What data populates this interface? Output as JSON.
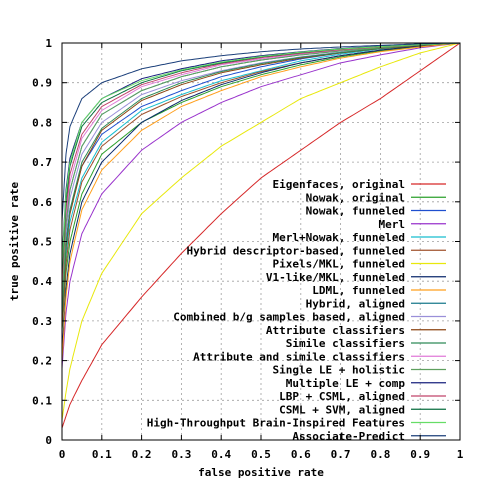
{
  "chart_data": {
    "type": "line",
    "title": "",
    "xlabel": "false positive rate",
    "ylabel": "true positive rate",
    "xlim": [
      0,
      1
    ],
    "ylim": [
      0,
      1
    ],
    "grid": true,
    "legend_position": "bottom-right",
    "x_ticks": [
      "0",
      "0.1",
      "0.2",
      "0.3",
      "0.4",
      "0.5",
      "0.6",
      "0.7",
      "0.8",
      "0.9",
      "1"
    ],
    "y_ticks": [
      "0",
      "0.1",
      "0.2",
      "0.3",
      "0.4",
      "0.5",
      "0.6",
      "0.7",
      "0.8",
      "0.9",
      "1"
    ],
    "series": [
      {
        "name": "Eigenfaces, original",
        "color": "#d62728",
        "tpr_at_fpr_0_05_0_1_0_2_0_3_0_4_0_5_0_6_0_7_0_8_0_9": [],
        "y0": 0.03,
        "points": [
          [
            0,
            0.03
          ],
          [
            0.01,
            0.06
          ],
          [
            0.02,
            0.09
          ],
          [
            0.05,
            0.15
          ],
          [
            0.1,
            0.24
          ],
          [
            0.2,
            0.36
          ],
          [
            0.3,
            0.47
          ],
          [
            0.4,
            0.57
          ],
          [
            0.5,
            0.66
          ],
          [
            0.6,
            0.73
          ],
          [
            0.7,
            0.8
          ],
          [
            0.8,
            0.86
          ],
          [
            0.9,
            0.93
          ],
          [
            1,
            1
          ]
        ]
      },
      {
        "name": "Nowak, original",
        "color": "#2ca02c",
        "points": [
          [
            0,
            0.27
          ],
          [
            0.01,
            0.42
          ],
          [
            0.02,
            0.5
          ],
          [
            0.05,
            0.62
          ],
          [
            0.1,
            0.72
          ],
          [
            0.2,
            0.8
          ],
          [
            0.3,
            0.85
          ],
          [
            0.4,
            0.89
          ],
          [
            0.5,
            0.92
          ],
          [
            0.6,
            0.945
          ],
          [
            0.7,
            0.965
          ],
          [
            0.8,
            0.98
          ],
          [
            0.9,
            0.992
          ],
          [
            1,
            1
          ]
        ]
      },
      {
        "name": "Nowak, funneled",
        "color": "#1f4fcf",
        "points": [
          [
            0,
            0.33
          ],
          [
            0.01,
            0.5
          ],
          [
            0.02,
            0.58
          ],
          [
            0.05,
            0.69
          ],
          [
            0.1,
            0.77
          ],
          [
            0.2,
            0.84
          ],
          [
            0.3,
            0.88
          ],
          [
            0.4,
            0.915
          ],
          [
            0.5,
            0.94
          ],
          [
            0.6,
            0.96
          ],
          [
            0.7,
            0.975
          ],
          [
            0.8,
            0.987
          ],
          [
            0.9,
            0.995
          ],
          [
            1,
            1
          ]
        ]
      },
      {
        "name": "Merl",
        "color": "#9933cc",
        "points": [
          [
            0,
            0.18
          ],
          [
            0.01,
            0.32
          ],
          [
            0.02,
            0.4
          ],
          [
            0.05,
            0.52
          ],
          [
            0.1,
            0.62
          ],
          [
            0.2,
            0.73
          ],
          [
            0.3,
            0.8
          ],
          [
            0.4,
            0.85
          ],
          [
            0.5,
            0.89
          ],
          [
            0.6,
            0.92
          ],
          [
            0.7,
            0.95
          ],
          [
            0.8,
            0.97
          ],
          [
            0.9,
            0.988
          ],
          [
            1,
            1
          ]
        ]
      },
      {
        "name": "Merl+Nowak, funneled",
        "color": "#17becf",
        "points": [
          [
            0,
            0.3
          ],
          [
            0.01,
            0.46
          ],
          [
            0.02,
            0.55
          ],
          [
            0.05,
            0.66
          ],
          [
            0.1,
            0.75
          ],
          [
            0.2,
            0.83
          ],
          [
            0.3,
            0.87
          ],
          [
            0.4,
            0.905
          ],
          [
            0.5,
            0.93
          ],
          [
            0.6,
            0.955
          ],
          [
            0.7,
            0.972
          ],
          [
            0.8,
            0.985
          ],
          [
            0.9,
            0.994
          ],
          [
            1,
            1
          ]
        ]
      },
      {
        "name": "Hybrid descriptor-based, funneled",
        "color": "#a0522d",
        "points": [
          [
            0,
            0.28
          ],
          [
            0.01,
            0.44
          ],
          [
            0.02,
            0.53
          ],
          [
            0.05,
            0.65
          ],
          [
            0.1,
            0.74
          ],
          [
            0.2,
            0.82
          ],
          [
            0.3,
            0.865
          ],
          [
            0.4,
            0.9
          ],
          [
            0.5,
            0.928
          ],
          [
            0.6,
            0.95
          ],
          [
            0.7,
            0.968
          ],
          [
            0.8,
            0.982
          ],
          [
            0.9,
            0.993
          ],
          [
            1,
            1
          ]
        ]
      },
      {
        "name": "Pixels/MKL, funneled",
        "color": "#e8e80c",
        "points": [
          [
            0,
            0.05
          ],
          [
            0.01,
            0.12
          ],
          [
            0.02,
            0.18
          ],
          [
            0.05,
            0.3
          ],
          [
            0.1,
            0.42
          ],
          [
            0.2,
            0.57
          ],
          [
            0.3,
            0.66
          ],
          [
            0.4,
            0.74
          ],
          [
            0.5,
            0.8
          ],
          [
            0.6,
            0.86
          ],
          [
            0.7,
            0.9
          ],
          [
            0.8,
            0.94
          ],
          [
            0.9,
            0.975
          ],
          [
            1,
            1
          ]
        ]
      },
      {
        "name": "V1-like/MKL, funneled",
        "color": "#0b2a6b",
        "points": [
          [
            0,
            0.22
          ],
          [
            0.01,
            0.38
          ],
          [
            0.02,
            0.47
          ],
          [
            0.05,
            0.6
          ],
          [
            0.1,
            0.7
          ],
          [
            0.2,
            0.8
          ],
          [
            0.3,
            0.855
          ],
          [
            0.4,
            0.895
          ],
          [
            0.5,
            0.925
          ],
          [
            0.6,
            0.95
          ],
          [
            0.7,
            0.968
          ],
          [
            0.8,
            0.982
          ],
          [
            0.9,
            0.993
          ],
          [
            1,
            1
          ]
        ]
      },
      {
        "name": "LDML, funneled",
        "color": "#ff9f1c",
        "points": [
          [
            0,
            0.2
          ],
          [
            0.01,
            0.36
          ],
          [
            0.02,
            0.45
          ],
          [
            0.05,
            0.58
          ],
          [
            0.1,
            0.68
          ],
          [
            0.2,
            0.78
          ],
          [
            0.3,
            0.84
          ],
          [
            0.4,
            0.88
          ],
          [
            0.5,
            0.915
          ],
          [
            0.6,
            0.94
          ],
          [
            0.7,
            0.962
          ],
          [
            0.8,
            0.978
          ],
          [
            0.9,
            0.99
          ],
          [
            1,
            1
          ]
        ]
      },
      {
        "name": "Hybrid, aligned",
        "color": "#1a7a8c",
        "points": [
          [
            0,
            0.36
          ],
          [
            0.01,
            0.55
          ],
          [
            0.02,
            0.63
          ],
          [
            0.05,
            0.74
          ],
          [
            0.1,
            0.82
          ],
          [
            0.2,
            0.88
          ],
          [
            0.3,
            0.915
          ],
          [
            0.4,
            0.94
          ],
          [
            0.5,
            0.957
          ],
          [
            0.6,
            0.97
          ],
          [
            0.7,
            0.98
          ],
          [
            0.8,
            0.988
          ],
          [
            0.9,
            0.995
          ],
          [
            1,
            1
          ]
        ]
      },
      {
        "name": "Combined b/g samples based, aligned",
        "color": "#9a8fd9",
        "points": [
          [
            0,
            0.34
          ],
          [
            0.01,
            0.52
          ],
          [
            0.02,
            0.61
          ],
          [
            0.05,
            0.72
          ],
          [
            0.1,
            0.8
          ],
          [
            0.2,
            0.87
          ],
          [
            0.3,
            0.905
          ],
          [
            0.4,
            0.93
          ],
          [
            0.5,
            0.95
          ],
          [
            0.6,
            0.965
          ],
          [
            0.7,
            0.977
          ],
          [
            0.8,
            0.987
          ],
          [
            0.9,
            0.995
          ],
          [
            1,
            1
          ]
        ]
      },
      {
        "name": "Attribute classifiers",
        "color": "#8b4513",
        "points": [
          [
            0,
            0.3
          ],
          [
            0.01,
            0.48
          ],
          [
            0.02,
            0.57
          ],
          [
            0.05,
            0.69
          ],
          [
            0.1,
            0.78
          ],
          [
            0.2,
            0.855
          ],
          [
            0.3,
            0.895
          ],
          [
            0.4,
            0.925
          ],
          [
            0.5,
            0.945
          ],
          [
            0.6,
            0.962
          ],
          [
            0.7,
            0.975
          ],
          [
            0.8,
            0.986
          ],
          [
            0.9,
            0.994
          ],
          [
            1,
            1
          ]
        ]
      },
      {
        "name": "Simile classifiers",
        "color": "#2e8b57",
        "points": [
          [
            0,
            0.31
          ],
          [
            0.01,
            0.49
          ],
          [
            0.02,
            0.58
          ],
          [
            0.05,
            0.7
          ],
          [
            0.1,
            0.785
          ],
          [
            0.2,
            0.86
          ],
          [
            0.3,
            0.9
          ],
          [
            0.4,
            0.928
          ],
          [
            0.5,
            0.948
          ],
          [
            0.6,
            0.964
          ],
          [
            0.7,
            0.976
          ],
          [
            0.8,
            0.987
          ],
          [
            0.9,
            0.995
          ],
          [
            1,
            1
          ]
        ]
      },
      {
        "name": "Attribute and simile classifiers",
        "color": "#e07ad8",
        "points": [
          [
            0,
            0.38
          ],
          [
            0.01,
            0.56
          ],
          [
            0.02,
            0.65
          ],
          [
            0.05,
            0.76
          ],
          [
            0.1,
            0.83
          ],
          [
            0.2,
            0.89
          ],
          [
            0.3,
            0.92
          ],
          [
            0.4,
            0.945
          ],
          [
            0.5,
            0.96
          ],
          [
            0.6,
            0.972
          ],
          [
            0.7,
            0.982
          ],
          [
            0.8,
            0.99
          ],
          [
            0.9,
            0.996
          ],
          [
            1,
            1
          ]
        ]
      },
      {
        "name": "Single LE + holistic",
        "color": "#5fa05f",
        "points": [
          [
            0,
            0.35
          ],
          [
            0.01,
            0.54
          ],
          [
            0.02,
            0.63
          ],
          [
            0.05,
            0.74
          ],
          [
            0.1,
            0.82
          ],
          [
            0.2,
            0.88
          ],
          [
            0.3,
            0.915
          ],
          [
            0.4,
            0.94
          ],
          [
            0.5,
            0.957
          ],
          [
            0.6,
            0.97
          ],
          [
            0.7,
            0.98
          ],
          [
            0.8,
            0.988
          ],
          [
            0.9,
            0.995
          ],
          [
            1,
            1
          ]
        ]
      },
      {
        "name": "Multiple LE + comp",
        "color": "#1a237e",
        "points": [
          [
            0,
            0.45
          ],
          [
            0.01,
            0.63
          ],
          [
            0.02,
            0.71
          ],
          [
            0.05,
            0.8
          ],
          [
            0.1,
            0.86
          ],
          [
            0.2,
            0.91
          ],
          [
            0.3,
            0.935
          ],
          [
            0.4,
            0.955
          ],
          [
            0.5,
            0.968
          ],
          [
            0.6,
            0.978
          ],
          [
            0.7,
            0.986
          ],
          [
            0.8,
            0.992
          ],
          [
            0.9,
            0.997
          ],
          [
            1,
            1
          ]
        ]
      },
      {
        "name": "LBP + CSML, aligned",
        "color": "#c1446b",
        "points": [
          [
            0,
            0.4
          ],
          [
            0.01,
            0.58
          ],
          [
            0.02,
            0.67
          ],
          [
            0.05,
            0.77
          ],
          [
            0.1,
            0.84
          ],
          [
            0.2,
            0.895
          ],
          [
            0.3,
            0.925
          ],
          [
            0.4,
            0.948
          ],
          [
            0.5,
            0.963
          ],
          [
            0.6,
            0.974
          ],
          [
            0.7,
            0.983
          ],
          [
            0.8,
            0.99
          ],
          [
            0.9,
            0.996
          ],
          [
            1,
            1
          ]
        ]
      },
      {
        "name": "CSML + SVM, aligned",
        "color": "#0a6e3f",
        "points": [
          [
            0,
            0.42
          ],
          [
            0.01,
            0.6
          ],
          [
            0.02,
            0.69
          ],
          [
            0.05,
            0.79
          ],
          [
            0.1,
            0.85
          ],
          [
            0.2,
            0.9
          ],
          [
            0.3,
            0.93
          ],
          [
            0.4,
            0.95
          ],
          [
            0.5,
            0.965
          ],
          [
            0.6,
            0.976
          ],
          [
            0.7,
            0.985
          ],
          [
            0.8,
            0.991
          ],
          [
            0.9,
            0.996
          ],
          [
            1,
            1
          ]
        ]
      },
      {
        "name": "High-Throughput Brain-Inspired Features",
        "color": "#66dd66",
        "points": [
          [
            0,
            0.44
          ],
          [
            0.01,
            0.62
          ],
          [
            0.02,
            0.7
          ],
          [
            0.05,
            0.8
          ],
          [
            0.1,
            0.86
          ],
          [
            0.2,
            0.905
          ],
          [
            0.3,
            0.932
          ],
          [
            0.4,
            0.952
          ],
          [
            0.5,
            0.966
          ],
          [
            0.6,
            0.977
          ],
          [
            0.7,
            0.985
          ],
          [
            0.8,
            0.991
          ],
          [
            0.9,
            0.996
          ],
          [
            1,
            1
          ]
        ]
      },
      {
        "name": "Associate-Predict",
        "color": "#1b3f7a",
        "points": [
          [
            0,
            0.55
          ],
          [
            0.01,
            0.72
          ],
          [
            0.02,
            0.79
          ],
          [
            0.05,
            0.86
          ],
          [
            0.1,
            0.9
          ],
          [
            0.2,
            0.935
          ],
          [
            0.3,
            0.955
          ],
          [
            0.4,
            0.968
          ],
          [
            0.5,
            0.978
          ],
          [
            0.6,
            0.985
          ],
          [
            0.7,
            0.99
          ],
          [
            0.8,
            0.994
          ],
          [
            0.9,
            0.998
          ],
          [
            1,
            1
          ]
        ]
      }
    ]
  }
}
